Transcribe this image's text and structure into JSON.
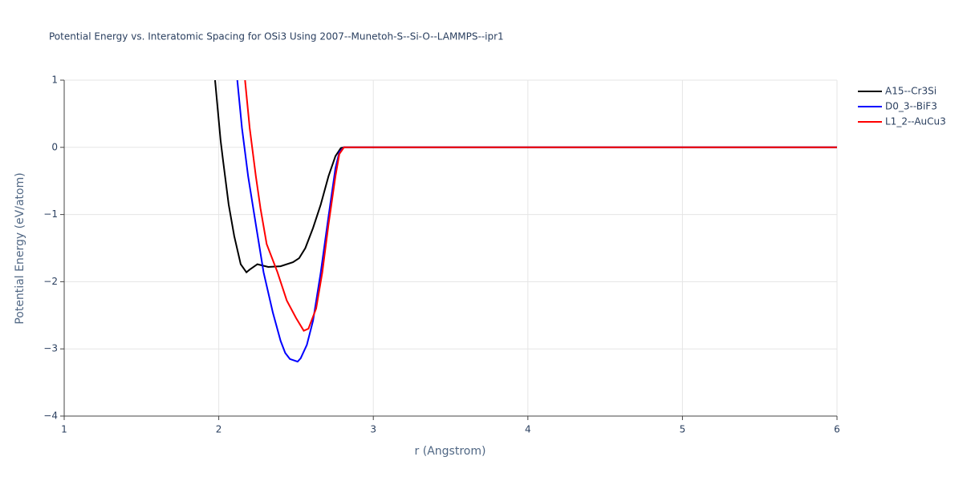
{
  "chart_data": {
    "type": "line",
    "title": "Potential Energy vs. Interatomic Spacing for OSi3 Using 2007--Munetoh-S--Si-O--LAMMPS--ipr1",
    "x_label": "r (Angstrom)",
    "y_label": "Potential Energy (eV/atom)",
    "xlim": [
      1,
      6
    ],
    "ylim": [
      -4,
      1
    ],
    "xticks": [
      1,
      2,
      3,
      4,
      5,
      6
    ],
    "yticks": [
      {
        "value": -4,
        "label": "−4"
      },
      {
        "value": -3,
        "label": "−3"
      },
      {
        "value": -2,
        "label": "−2"
      },
      {
        "value": -1,
        "label": "−1"
      },
      0,
      1
    ],
    "grid": true,
    "legend": "top-right",
    "series": [
      {
        "name": "A15--Cr3Si",
        "color": "#000000",
        "x": [
          1.976,
          2.012,
          2.028,
          2.064,
          2.1,
          2.142,
          2.179,
          2.2,
          2.25,
          2.32,
          2.4,
          2.48,
          2.52,
          2.56,
          2.61,
          2.66,
          2.71,
          2.755,
          2.79,
          2.81,
          6.0
        ],
        "values": [
          1,
          0.1,
          -0.2,
          -0.85,
          -1.32,
          -1.74,
          -1.86,
          -1.82,
          -1.74,
          -1.78,
          -1.77,
          -1.71,
          -1.65,
          -1.5,
          -1.2,
          -0.85,
          -0.43,
          -0.13,
          -0.01,
          0,
          0
        ]
      },
      {
        "name": "D0_3--BiF3",
        "color": "#0000ff",
        "x": [
          2.12,
          2.15,
          2.19,
          2.24,
          2.29,
          2.35,
          2.4,
          2.43,
          2.46,
          2.51,
          2.53,
          2.57,
          2.61,
          2.66,
          2.71,
          2.755,
          2.78,
          2.81,
          6.0
        ],
        "values": [
          1,
          0.29,
          -0.43,
          -1.15,
          -1.86,
          -2.46,
          -2.88,
          -3.06,
          -3.15,
          -3.19,
          -3.14,
          -2.94,
          -2.58,
          -1.86,
          -1.03,
          -0.31,
          -0.07,
          0,
          0
        ]
      },
      {
        "name": "L1_2--AuCu3",
        "color": "#ff0000",
        "x": [
          2.17,
          2.2,
          2.24,
          2.27,
          2.31,
          2.38,
          2.44,
          2.5,
          2.55,
          2.58,
          2.63,
          2.67,
          2.71,
          2.755,
          2.78,
          2.81,
          6.0
        ],
        "values": [
          1,
          0.29,
          -0.43,
          -0.91,
          -1.44,
          -1.86,
          -2.28,
          -2.54,
          -2.73,
          -2.7,
          -2.4,
          -1.86,
          -1.15,
          -0.43,
          -0.1,
          0,
          0
        ]
      }
    ]
  }
}
